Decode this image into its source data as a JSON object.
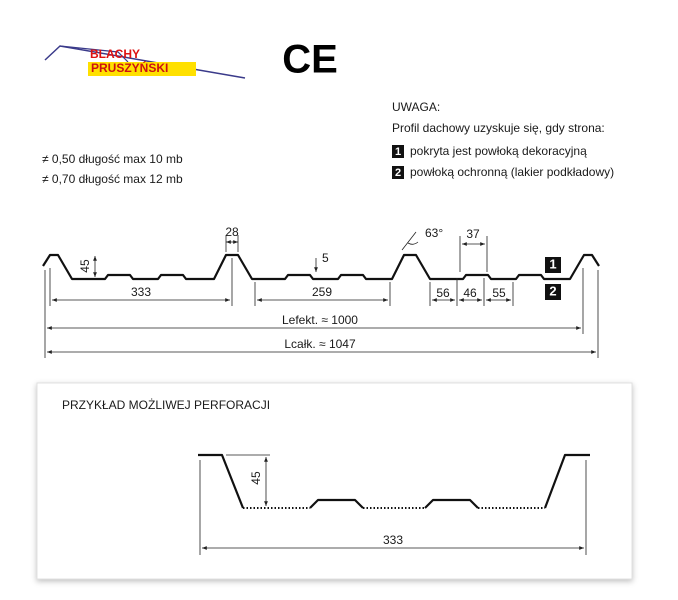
{
  "logo": {
    "line1": "BLACHY",
    "line2": "PRUSZYŃSKI"
  },
  "ce_mark": "CE",
  "notes": [
    "≠ 0,50 długość max 10 mb",
    "≠ 0,70 długość max 12 mb"
  ],
  "warning": {
    "title": "UWAGA:",
    "intro": "Profil dachowy uzyskuje się, gdy strona:",
    "items": [
      {
        "marker": "1",
        "text": "pokryta jest powłoką dekoracyjną"
      },
      {
        "marker": "2",
        "text": "powłoką ochronną (lakier podkładowy)"
      }
    ]
  },
  "profile": {
    "dims": {
      "rib_top": "28",
      "rib_height": "45",
      "pitch": "333",
      "valley": "259",
      "stiffener": "5",
      "angle": "63°",
      "stiffener_top": "37",
      "seg1": "56",
      "seg2": "46",
      "seg3": "55"
    },
    "side_markers": [
      "1",
      "2"
    ],
    "effective_length": "Lefekt. ≈ 1000",
    "total_length": "Lcałk. ≈ 1047"
  },
  "perforation": {
    "title": "PRZYKŁAD MOŻLIWEJ PERFORACJI",
    "height": "45",
    "width": "333"
  }
}
